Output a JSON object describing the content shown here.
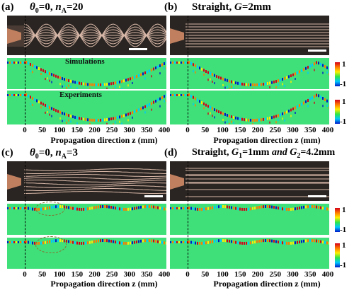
{
  "panels": {
    "a": {
      "label": "(a)",
      "title_main": "θ",
      "title_sub0": "0",
      "title_mid": "=0, ",
      "title_n": "n",
      "title_subA": "A",
      "title_end": "=20",
      "sim_label": "Simulations",
      "exp_label": "Experiments"
    },
    "b": {
      "label": "(b)",
      "title_pre": "Straight, ",
      "title_g": "G",
      "title_end": "=2mm"
    },
    "c": {
      "label": "(c)",
      "title_main": "θ",
      "title_sub0": "0",
      "title_mid": "=0, ",
      "title_n": "n",
      "title_subA": "A",
      "title_end": "=3"
    },
    "d": {
      "label": "(d)",
      "title_pre": "Straight, ",
      "title_g1": "G",
      "title_sub1": "1",
      "title_mid": "=1mm ",
      "title_and": "and ",
      "title_g2": "G",
      "title_sub2": "2",
      "title_end": "=4.2mm"
    }
  },
  "axis": {
    "ticks": [
      "0",
      "50",
      "100",
      "150",
      "200",
      "250",
      "300",
      "350",
      "400"
    ],
    "xlabel": "Propagation direction z (mm)"
  },
  "colorbar": {
    "max": "1",
    "min": "-1"
  },
  "colors": {
    "background": "#3fe07a",
    "photo": "#2a2522"
  }
}
